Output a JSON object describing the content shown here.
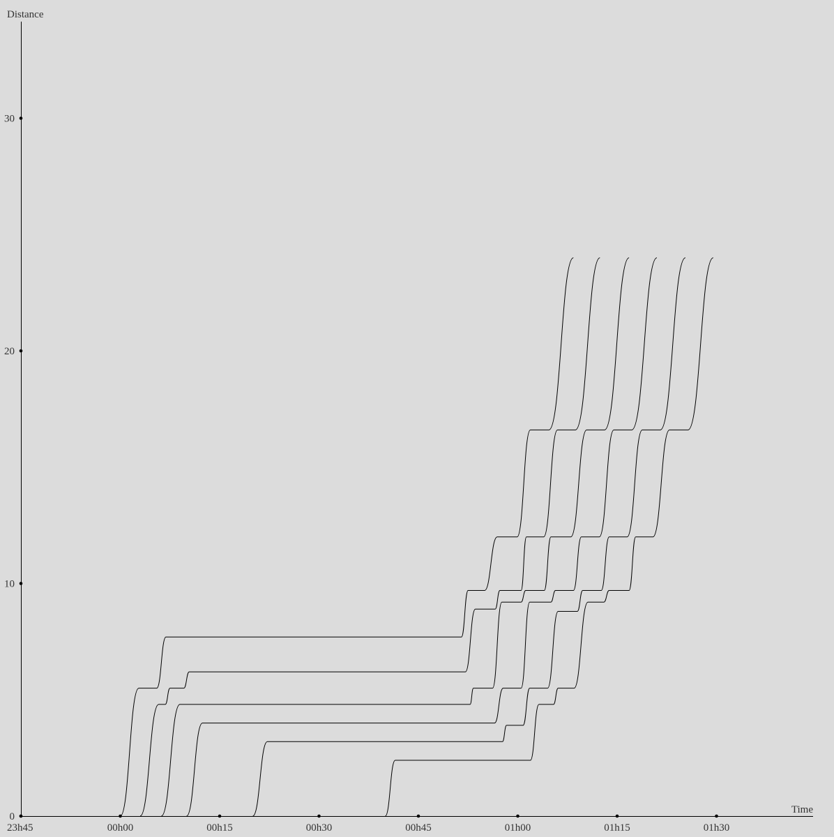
{
  "chart_data": {
    "type": "line",
    "xlabel": "Time",
    "ylabel": "Distance",
    "xlim": [
      -15,
      105
    ],
    "ylim": [
      0,
      34
    ],
    "x_ticks": [
      {
        "value": -15,
        "label": "23h45"
      },
      {
        "value": 0,
        "label": "00h00"
      },
      {
        "value": 15,
        "label": "00h15"
      },
      {
        "value": 30,
        "label": "00h30"
      },
      {
        "value": 45,
        "label": "00h45"
      },
      {
        "value": 60,
        "label": "01h00"
      },
      {
        "value": 75,
        "label": "01h15"
      },
      {
        "value": 90,
        "label": "01h30"
      }
    ],
    "y_ticks": [
      {
        "value": 0,
        "label": "0"
      },
      {
        "value": 10,
        "label": "10"
      },
      {
        "value": 20,
        "label": "20"
      },
      {
        "value": 30,
        "label": "30"
      }
    ],
    "series": [
      {
        "points": [
          [
            0.0,
            0
          ],
          [
            2.8,
            5.5
          ],
          [
            5.5,
            5.5
          ],
          [
            6.9,
            7.7
          ],
          [
            51.5,
            7.7
          ],
          [
            52.5,
            9.7
          ],
          [
            55.0,
            9.7
          ],
          [
            56.9,
            12.0
          ],
          [
            59.9,
            12.0
          ],
          [
            61.9,
            16.6
          ],
          [
            64.7,
            16.6
          ],
          [
            68.4,
            24.0
          ]
        ]
      },
      {
        "points": [
          [
            3.0,
            0
          ],
          [
            5.8,
            4.8
          ],
          [
            6.8,
            4.8
          ],
          [
            7.5,
            5.5
          ],
          [
            9.6,
            5.5
          ],
          [
            10.4,
            6.2
          ],
          [
            52.1,
            6.2
          ],
          [
            53.6,
            8.9
          ],
          [
            56.6,
            8.9
          ],
          [
            57.3,
            9.7
          ],
          [
            60.5,
            9.7
          ],
          [
            61.3,
            12.0
          ],
          [
            63.9,
            12.0
          ],
          [
            66.0,
            16.6
          ],
          [
            68.7,
            16.6
          ],
          [
            72.4,
            24.0
          ]
        ]
      },
      {
        "points": [
          [
            6.2,
            0
          ],
          [
            9.0,
            4.8
          ],
          [
            52.8,
            4.8
          ],
          [
            53.3,
            5.5
          ],
          [
            56.2,
            5.5
          ],
          [
            57.6,
            9.2
          ],
          [
            60.5,
            9.2
          ],
          [
            61.2,
            9.7
          ],
          [
            64.0,
            9.7
          ],
          [
            65.0,
            12.0
          ],
          [
            68.0,
            12.0
          ],
          [
            70.4,
            16.6
          ],
          [
            73.1,
            16.6
          ],
          [
            76.8,
            24.0
          ]
        ]
      },
      {
        "points": [
          [
            10.0,
            0
          ],
          [
            12.4,
            4.0
          ],
          [
            56.5,
            4.0
          ],
          [
            57.8,
            5.5
          ],
          [
            60.5,
            5.5
          ],
          [
            61.8,
            9.2
          ],
          [
            65.0,
            9.2
          ],
          [
            65.7,
            9.7
          ],
          [
            68.4,
            9.7
          ],
          [
            69.6,
            12.0
          ],
          [
            72.3,
            12.0
          ],
          [
            74.5,
            16.6
          ],
          [
            77.2,
            16.6
          ],
          [
            81.0,
            24.0
          ]
        ]
      },
      {
        "points": [
          [
            20.0,
            0
          ],
          [
            22.2,
            3.2
          ],
          [
            57.7,
            3.2
          ],
          [
            58.3,
            3.9
          ],
          [
            60.8,
            3.9
          ],
          [
            61.8,
            5.5
          ],
          [
            64.5,
            5.5
          ],
          [
            66.1,
            8.8
          ],
          [
            69.0,
            8.8
          ],
          [
            69.8,
            9.7
          ],
          [
            72.6,
            9.7
          ],
          [
            73.8,
            12.0
          ],
          [
            76.5,
            12.0
          ],
          [
            78.8,
            16.6
          ],
          [
            81.5,
            16.6
          ],
          [
            85.3,
            24.0
          ]
        ]
      },
      {
        "points": [
          [
            40.0,
            0
          ],
          [
            41.5,
            2.4
          ],
          [
            61.9,
            2.4
          ],
          [
            63.2,
            4.8
          ],
          [
            65.4,
            4.8
          ],
          [
            66.1,
            5.5
          ],
          [
            68.5,
            5.5
          ],
          [
            70.6,
            9.2
          ],
          [
            73.0,
            9.2
          ],
          [
            73.8,
            9.7
          ],
          [
            76.8,
            9.7
          ],
          [
            77.8,
            12.0
          ],
          [
            80.4,
            12.0
          ],
          [
            82.9,
            16.6
          ],
          [
            85.7,
            16.6
          ],
          [
            89.5,
            24.0
          ]
        ]
      }
    ]
  }
}
